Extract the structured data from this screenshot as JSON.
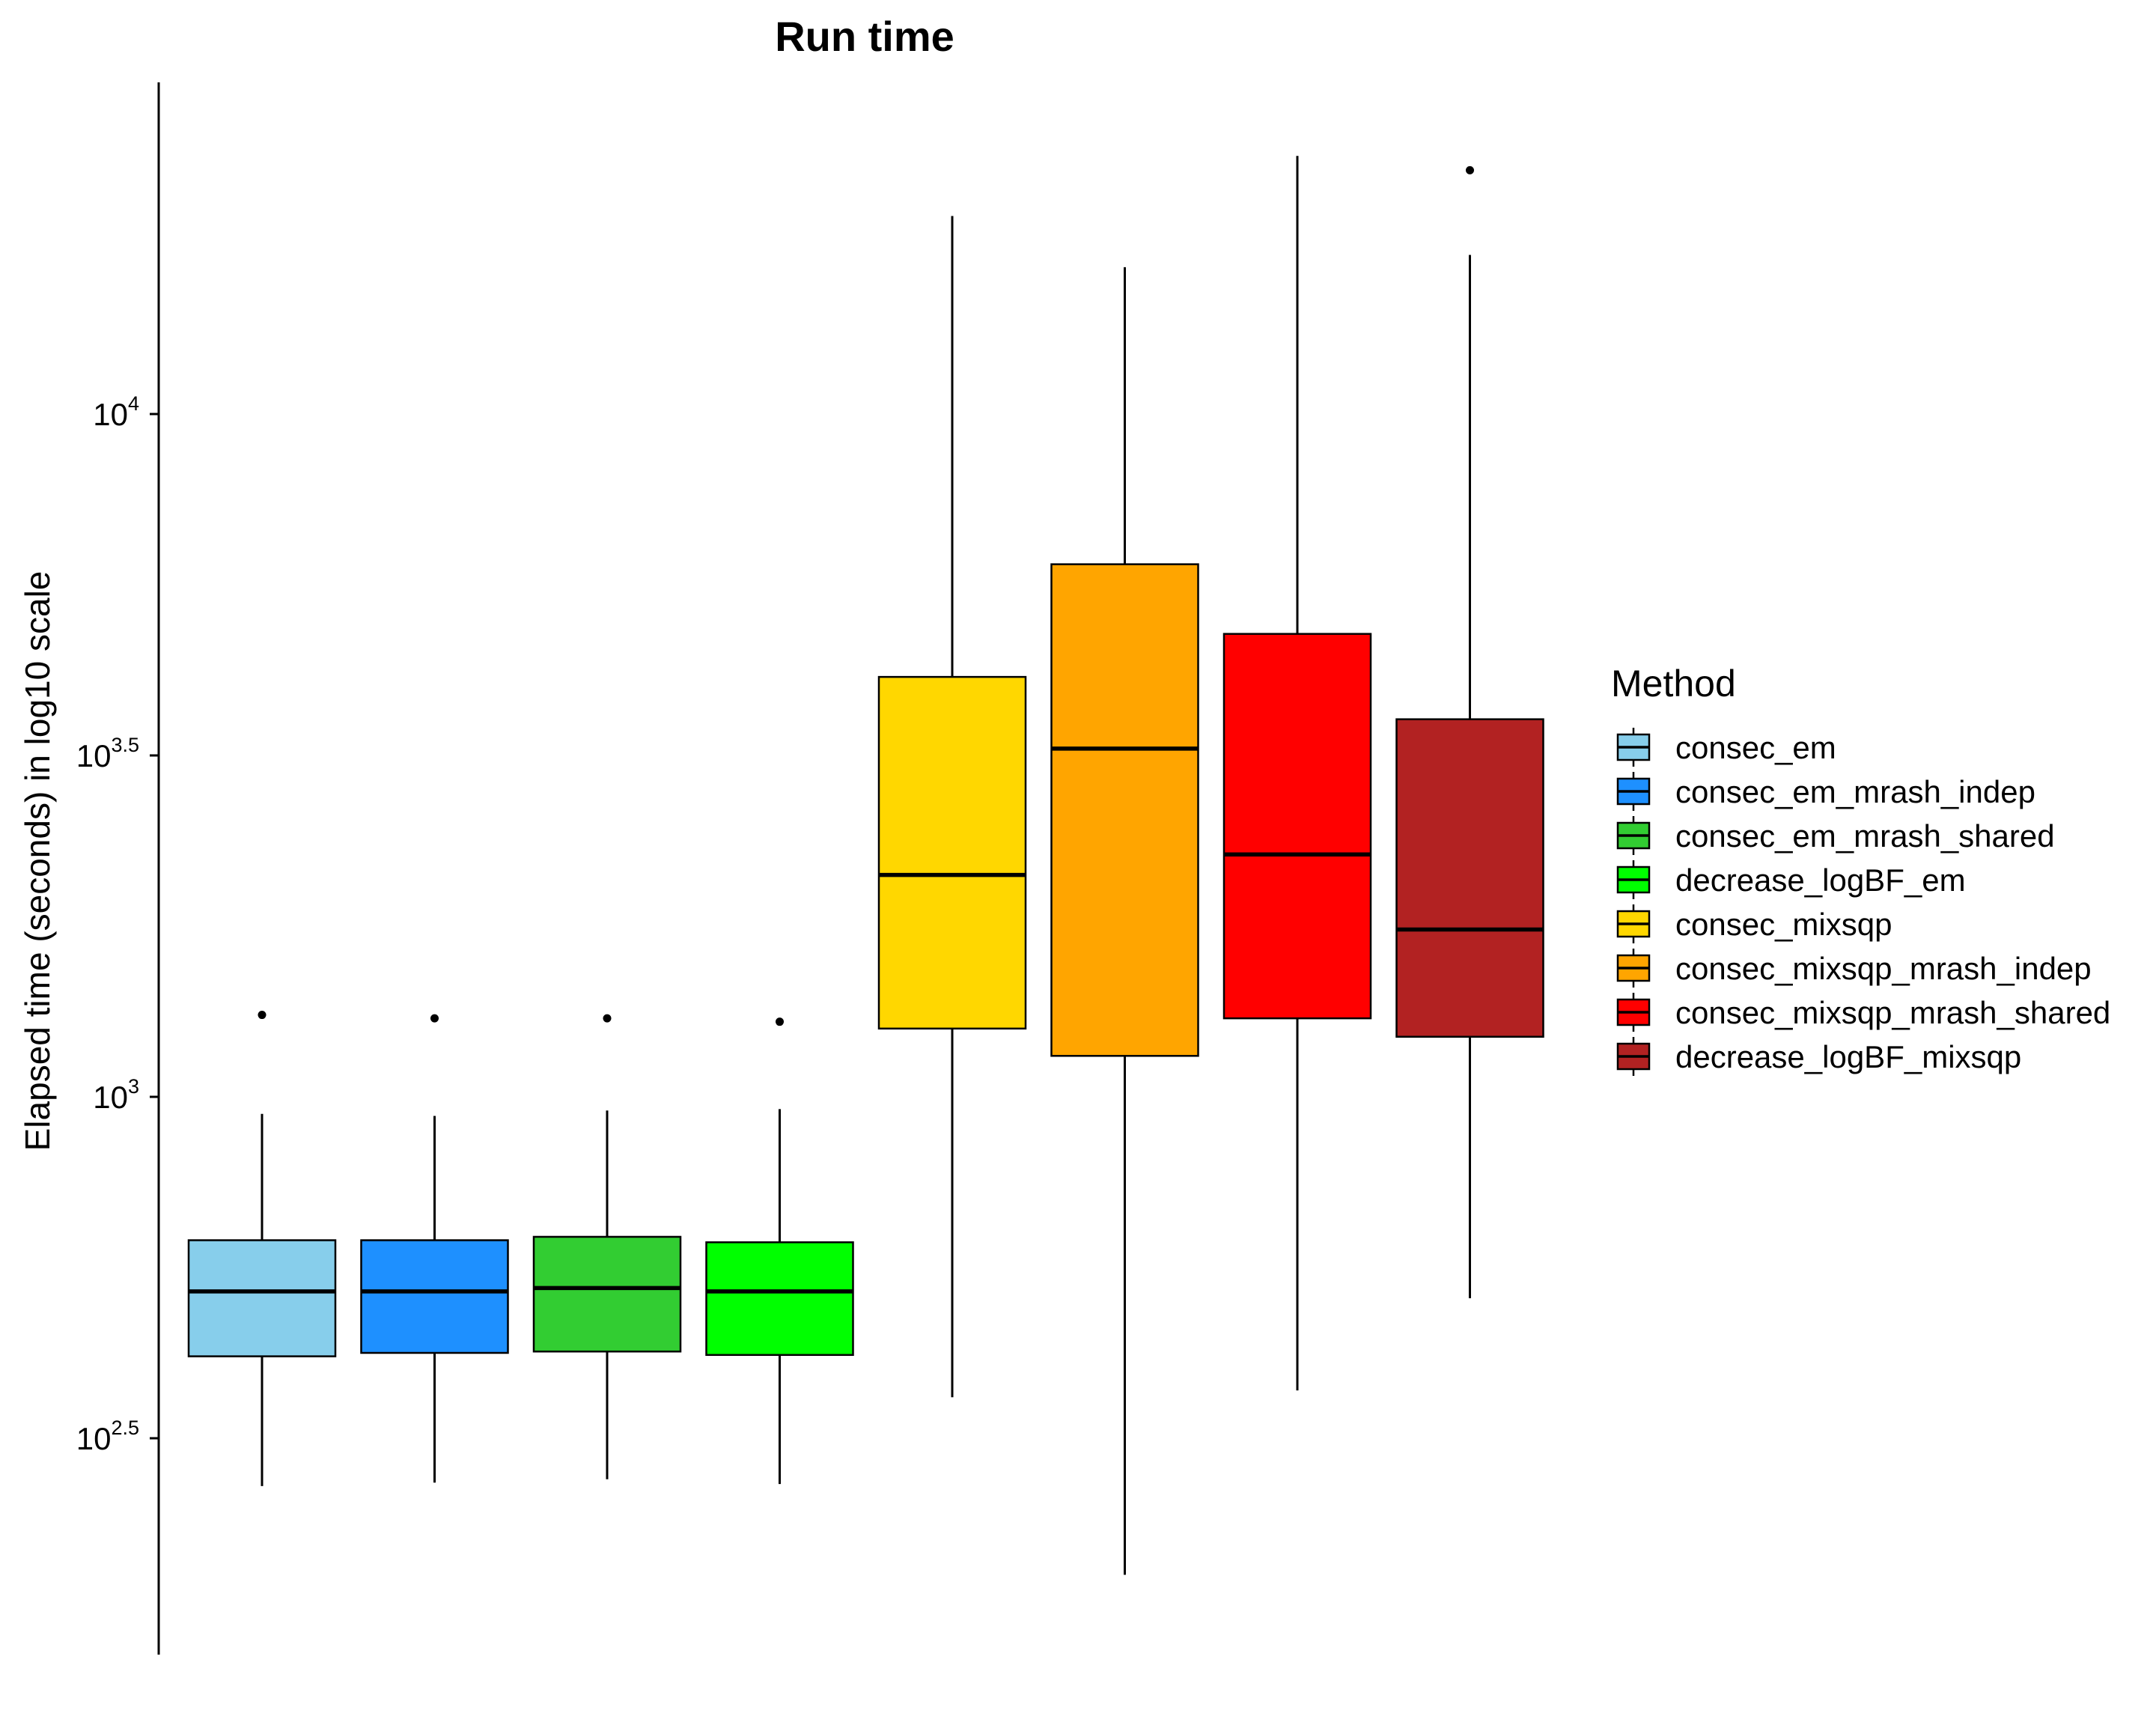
{
  "chart_data": {
    "type": "boxplot",
    "title": "Run time",
    "xlabel": "",
    "ylabel": "Elapsed time (seconds) in log10 scale",
    "yscale": "log10",
    "ylim_log10": [
      2.16,
      4.46
    ],
    "yticks": [
      {
        "log10": 2.5,
        "base": "10",
        "exp": "2.5"
      },
      {
        "log10": 3.0,
        "base": "10",
        "exp": "3"
      },
      {
        "log10": 3.5,
        "base": "10",
        "exp": "3.5"
      },
      {
        "log10": 4.0,
        "base": "10",
        "exp": "4"
      }
    ],
    "legend": {
      "title": "Method",
      "position": "right"
    },
    "series": [
      {
        "name": "consec_em",
        "color": "#87CEEB",
        "whisker_low": 2.43,
        "q1": 2.62,
        "median": 2.715,
        "q3": 2.79,
        "whisker_high": 2.975,
        "outliers": [
          3.12
        ]
      },
      {
        "name": "consec_em_mrash_indep",
        "color": "#1E90FF",
        "whisker_low": 2.435,
        "q1": 2.625,
        "median": 2.715,
        "q3": 2.79,
        "whisker_high": 2.972,
        "outliers": [
          3.115
        ]
      },
      {
        "name": "consec_em_mrash_shared",
        "color": "#32CD32",
        "whisker_low": 2.44,
        "q1": 2.627,
        "median": 2.72,
        "q3": 2.795,
        "whisker_high": 2.98,
        "outliers": [
          3.115
        ]
      },
      {
        "name": "decrease_logBF_em",
        "color": "#00FF00",
        "whisker_low": 2.433,
        "q1": 2.622,
        "median": 2.715,
        "q3": 2.787,
        "whisker_high": 2.982,
        "outliers": [
          3.11
        ]
      },
      {
        "name": "consec_mixsqp",
        "color": "#FFD700",
        "whisker_low": 2.56,
        "q1": 3.1,
        "median": 3.325,
        "q3": 3.615,
        "whisker_high": 4.29,
        "outliers": []
      },
      {
        "name": "consec_mixsqp_mrash_indep",
        "color": "#FFA500",
        "whisker_low": 2.3,
        "q1": 3.06,
        "median": 3.51,
        "q3": 3.78,
        "whisker_high": 4.215,
        "outliers": []
      },
      {
        "name": "consec_mixsqp_mrash_shared",
        "color": "#FF0000",
        "whisker_low": 2.57,
        "q1": 3.115,
        "median": 3.355,
        "q3": 3.678,
        "whisker_high": 4.378,
        "outliers": []
      },
      {
        "name": "decrease_logBF_mixsqp",
        "color": "#B22222",
        "whisker_low": 2.705,
        "q1": 3.088,
        "median": 3.245,
        "q3": 3.553,
        "whisker_high": 4.233,
        "outliers": [
          4.357
        ]
      }
    ]
  }
}
